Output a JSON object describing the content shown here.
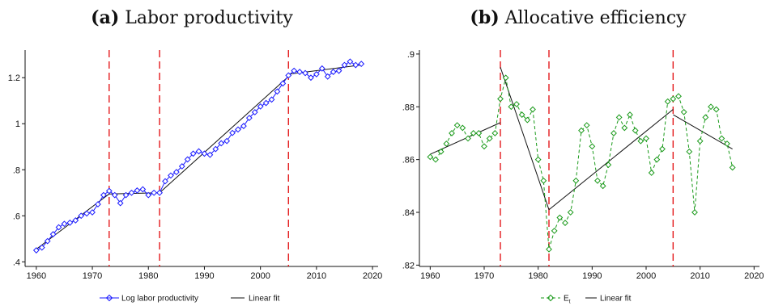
{
  "chart_data": [
    {
      "panel_label": "(a)",
      "title": "Labor productivity",
      "type": "line",
      "xlabel": "",
      "ylabel": "",
      "xlim": [
        1958,
        2021
      ],
      "ylim": [
        0.38,
        1.32
      ],
      "xticks": [
        "1960",
        "1970",
        "1980",
        "1990",
        "2000",
        "2010",
        "2020"
      ],
      "yticks": [
        ".4",
        ".6",
        ".8",
        "1",
        "1.2"
      ],
      "grid": false,
      "legend_position": "bottom",
      "breaks": [
        1973,
        1982,
        2005
      ],
      "breaks_color": "#e41a1c",
      "series": [
        {
          "name": "Log labor productivity",
          "color": "#1a1aff",
          "marker": "diamond-open",
          "x": [
            1960,
            1961,
            1962,
            1963,
            1964,
            1965,
            1966,
            1967,
            1968,
            1969,
            1970,
            1971,
            1972,
            1973,
            1974,
            1975,
            1976,
            1977,
            1978,
            1979,
            1980,
            1981,
            1982,
            1983,
            1984,
            1985,
            1986,
            1987,
            1988,
            1989,
            1990,
            1991,
            1992,
            1993,
            1994,
            1995,
            1996,
            1997,
            1998,
            1999,
            2000,
            2001,
            2002,
            2003,
            2004,
            2005,
            2006,
            2007,
            2008,
            2009,
            2010,
            2011,
            2012,
            2013,
            2014,
            2015,
            2016,
            2017,
            2018
          ],
          "y": [
            0.45,
            0.462,
            0.49,
            0.52,
            0.55,
            0.565,
            0.57,
            0.58,
            0.6,
            0.61,
            0.615,
            0.65,
            0.69,
            0.708,
            0.69,
            0.655,
            0.69,
            0.7,
            0.71,
            0.715,
            0.69,
            0.7,
            0.7,
            0.75,
            0.775,
            0.79,
            0.815,
            0.845,
            0.87,
            0.88,
            0.87,
            0.865,
            0.89,
            0.915,
            0.925,
            0.96,
            0.975,
            0.99,
            1.025,
            1.05,
            1.075,
            1.09,
            1.105,
            1.14,
            1.175,
            1.21,
            1.23,
            1.225,
            1.22,
            1.2,
            1.215,
            1.24,
            1.205,
            1.225,
            1.23,
            1.255,
            1.27,
            1.255,
            1.26
          ]
        },
        {
          "name": "Linear fit",
          "color": "#111111",
          "segments": [
            {
              "x": [
                1960,
                1973
              ],
              "y": [
                0.455,
                0.695
              ]
            },
            {
              "x": [
                1973,
                1982
              ],
              "y": [
                0.695,
                0.7
              ]
            },
            {
              "x": [
                1982,
                2005
              ],
              "y": [
                0.7,
                1.205
              ]
            },
            {
              "x": [
                2005,
                2018
              ],
              "y": [
                1.215,
                1.255
              ]
            }
          ]
        }
      ]
    },
    {
      "panel_label": "(b)",
      "title": "Allocative efficiency",
      "type": "line",
      "xlabel": "",
      "ylabel": "",
      "xlim": [
        1958,
        2021
      ],
      "ylim": [
        0.8195,
        0.9015
      ],
      "xticks": [
        "1960",
        "1970",
        "1980",
        "1990",
        "2000",
        "2010",
        "2020"
      ],
      "yticks": [
        ".82",
        ".84",
        ".86",
        ".88",
        ".9"
      ],
      "grid": false,
      "legend_position": "bottom",
      "breaks": [
        1973,
        1982,
        2005
      ],
      "breaks_color": "#e41a1c",
      "series": [
        {
          "name": "E",
          "name_subscript": "t",
          "color": "#1a9a1a",
          "marker": "diamond-open",
          "line_style": "dashed",
          "x": [
            1960,
            1961,
            1962,
            1963,
            1964,
            1965,
            1966,
            1967,
            1968,
            1969,
            1970,
            1971,
            1972,
            1973,
            1974,
            1975,
            1976,
            1977,
            1978,
            1979,
            1980,
            1981,
            1982,
            1983,
            1984,
            1985,
            1986,
            1987,
            1988,
            1989,
            1990,
            1991,
            1992,
            1993,
            1994,
            1995,
            1996,
            1997,
            1998,
            1999,
            2000,
            2001,
            2002,
            2003,
            2004,
            2005,
            2006,
            2007,
            2008,
            2009,
            2010,
            2011,
            2012,
            2013,
            2014,
            2015,
            2016
          ],
          "y": [
            0.861,
            0.86,
            0.863,
            0.866,
            0.87,
            0.873,
            0.872,
            0.868,
            0.87,
            0.87,
            0.865,
            0.868,
            0.87,
            0.883,
            0.891,
            0.88,
            0.881,
            0.877,
            0.875,
            0.879,
            0.86,
            0.852,
            0.826,
            0.833,
            0.838,
            0.836,
            0.84,
            0.852,
            0.871,
            0.873,
            0.865,
            0.852,
            0.85,
            0.858,
            0.87,
            0.876,
            0.872,
            0.877,
            0.871,
            0.867,
            0.868,
            0.855,
            0.86,
            0.864,
            0.882,
            0.883,
            0.884,
            0.878,
            0.863,
            0.84,
            0.867,
            0.876,
            0.88,
            0.879,
            0.868,
            0.866,
            0.857
          ]
        },
        {
          "name": "Linear fit",
          "color": "#111111",
          "segments": [
            {
              "x": [
                1960,
                1973
              ],
              "y": [
                0.862,
                0.874
              ]
            },
            {
              "x": [
                1973,
                1982
              ],
              "y": [
                0.895,
                0.841
              ]
            },
            {
              "x": [
                1982,
                2005
              ],
              "y": [
                0.841,
                0.879
              ]
            },
            {
              "x": [
                2005,
                2016
              ],
              "y": [
                0.877,
                0.864
              ]
            }
          ]
        }
      ]
    }
  ]
}
